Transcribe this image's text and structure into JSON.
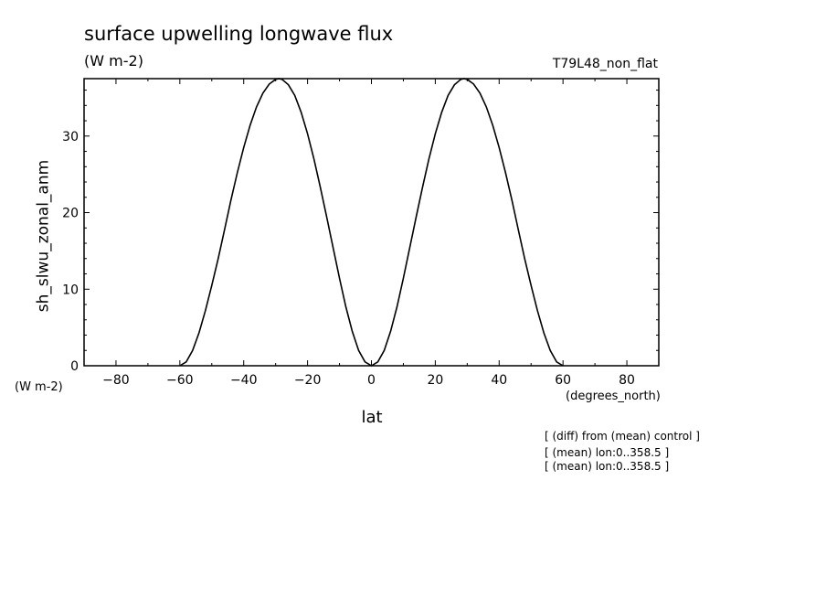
{
  "chart_data": {
    "type": "line",
    "title": "surface upwelling longwave flux",
    "units": "(W m-2)",
    "run_label": "T79L48_non_flat",
    "xlabel": "lat",
    "ylabel": "sh_slwu_zonal_anm",
    "x_units": "(degrees_north)",
    "y_units": "(W m-2)",
    "xlim": [
      -90,
      90
    ],
    "ylim": [
      0,
      37.5
    ],
    "xticks": [
      -80,
      -60,
      -40,
      -20,
      0,
      20,
      40,
      60,
      80
    ],
    "yticks": [
      0,
      10,
      20,
      30
    ],
    "grid": false,
    "series": [
      {
        "x": [
          -60,
          -58,
          -56,
          -54,
          -52,
          -50,
          -48,
          -46,
          -44,
          -42,
          -40,
          -38,
          -36,
          -34,
          -32,
          -30,
          -29,
          -28,
          -26,
          -24,
          -22,
          -20,
          -18,
          -16,
          -14,
          -12,
          -10,
          -8,
          -6,
          -4,
          -2,
          0,
          2,
          4,
          6,
          8,
          10,
          12,
          14,
          16,
          18,
          20,
          22,
          24,
          26,
          28,
          29,
          30,
          32,
          34,
          36,
          38,
          40,
          42,
          44,
          46,
          48,
          50,
          52,
          54,
          56,
          58,
          60
        ],
        "y": [
          0,
          0.5,
          2.0,
          4.3,
          7.2,
          10.5,
          14.0,
          17.8,
          21.6,
          25.2,
          28.5,
          31.4,
          33.8,
          35.6,
          36.8,
          37.4,
          37.5,
          37.4,
          36.7,
          35.3,
          33.1,
          30.3,
          27.0,
          23.3,
          19.4,
          15.4,
          11.4,
          7.7,
          4.5,
          2.0,
          0.5,
          0,
          0.5,
          2.0,
          4.5,
          7.7,
          11.4,
          15.4,
          19.4,
          23.3,
          27.0,
          30.3,
          33.1,
          35.3,
          36.7,
          37.4,
          37.5,
          37.4,
          36.8,
          35.6,
          33.8,
          31.4,
          28.5,
          25.2,
          21.6,
          17.8,
          14.0,
          10.5,
          7.2,
          4.3,
          2.0,
          0.5,
          0
        ]
      }
    ]
  },
  "notes": [
    "[ (diff) from (mean) control ]",
    "[ (mean) lon:0..358.5 ]",
    "[ (mean) lon:0..358.5 ]"
  ]
}
